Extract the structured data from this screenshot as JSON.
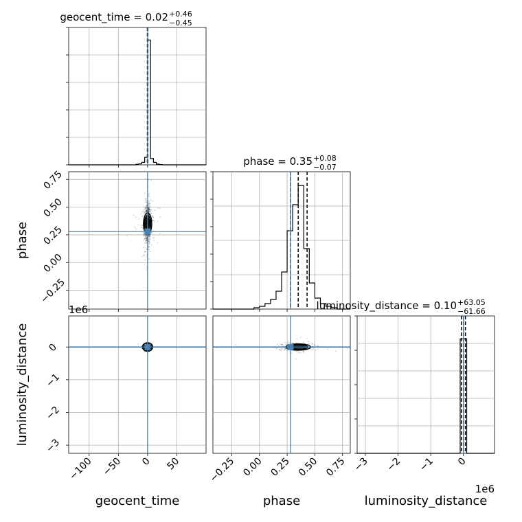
{
  "chart_data": {
    "type": "corner",
    "params": [
      "geocent_time",
      "phase",
      "luminosity_distance"
    ],
    "grid": true,
    "truth_color": "#4682b4",
    "hist_color": "#000000",
    "titles": [
      {
        "param": "geocent_time",
        "prefix": "geocent_time = ",
        "median": "0.02",
        "plus": "+0.46",
        "minus": "−0.45"
      },
      {
        "param": "phase",
        "prefix": "phase = ",
        "median": "0.35",
        "plus": "+0.08",
        "minus": "−0.07"
      },
      {
        "param": "luminosity_distance",
        "prefix": "luminosity_distance = ",
        "median": "0.10",
        "plus": "+63.05",
        "minus": "−61.66"
      }
    ],
    "axis_labels": {
      "x": [
        "geocent_time",
        "phase",
        "luminosity_distance"
      ],
      "y": [
        "phase",
        "luminosity_distance"
      ]
    },
    "ranges": {
      "geocent_time": [
        -135,
        100
      ],
      "phase": [
        -0.42,
        0.82
      ],
      "luminosity_distance": [
        -3.25,
        0.95
      ]
    },
    "ticks": {
      "geocent_time": {
        "values": [
          -100,
          -50,
          0,
          50
        ],
        "labels": [
          "−100",
          "−50",
          "0",
          "50"
        ]
      },
      "phase": {
        "values": [
          -0.25,
          0.0,
          0.25,
          0.5,
          0.75
        ],
        "labels": [
          "−0.25",
          "0.00",
          "0.25",
          "0.50",
          "0.75"
        ]
      },
      "luminosity_distance": {
        "values": [
          -3,
          -2,
          -1,
          0
        ],
        "labels": [
          "−3",
          "−2",
          "−1",
          "0"
        ]
      }
    },
    "offset_text": {
      "luminosity_distance_y": "1e6",
      "luminosity_distance_x": "1e6"
    },
    "truths": {
      "geocent_time": 0.0,
      "phase": 0.28,
      "luminosity_distance": 0.0
    },
    "quantiles": {
      "geocent_time": [
        -0.43,
        0.02,
        0.48
      ],
      "phase": [
        0.28,
        0.35,
        0.43
      ],
      "luminosity_distance": [
        -0.06,
        0.0,
        0.06
      ]
    },
    "histograms": {
      "geocent_time": {
        "edges": [
          -20,
          -15,
          -10,
          -5,
          0,
          5,
          10,
          15,
          20,
          25
        ],
        "counts": [
          0.004,
          0.008,
          0.02,
          0.06,
          1.0,
          0.05,
          0.02,
          0.006,
          0.002
        ],
        "ylim": [
          0,
          1.1
        ]
      },
      "phase": {
        "edges": [
          -0.05,
          0.0,
          0.05,
          0.1,
          0.15,
          0.2,
          0.25,
          0.3,
          0.35,
          0.4,
          0.45,
          0.5,
          0.55,
          0.6,
          0.65,
          0.7
        ],
        "counts": [
          0.01,
          0.02,
          0.04,
          0.07,
          0.13,
          0.27,
          0.57,
          0.76,
          0.9,
          0.44,
          0.19,
          0.08,
          0.04,
          0.02,
          0.01
        ],
        "ylim": [
          0,
          1.0
        ]
      },
      "luminosity_distance": {
        "edges": [
          -0.1,
          0.1
        ],
        "counts": [
          1.0
        ],
        "ylim": [
          0,
          1.2
        ]
      }
    }
  }
}
